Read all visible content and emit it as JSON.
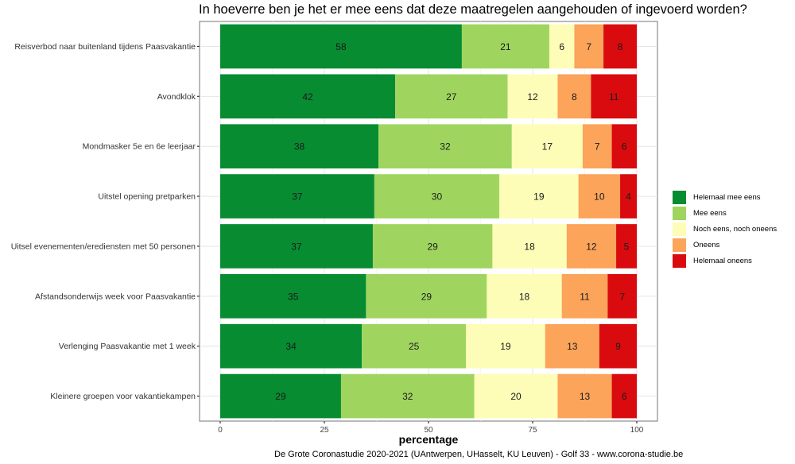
{
  "chart_data": {
    "type": "bar",
    "orientation": "horizontal",
    "stacked": true,
    "title": "In hoeverre ben je het er mee eens dat deze maatregelen aangehouden of ingevoerd worden?",
    "xlabel": "percentage",
    "ylabel": "",
    "xlim": [
      0,
      100
    ],
    "x_ticks": [
      0,
      25,
      50,
      75,
      100
    ],
    "grid": true,
    "legend_position": "right",
    "caption": "De Grote Coronastudie 2020-2021  (UAntwerpen, UHasselt, KU Leuven) - Golf 33 - www.corona-studie.be",
    "categories": [
      "Reisverbod naar buitenland tijdens Paasvakantie",
      "Avondklok",
      "Mondmasker 5e en 6e leerjaar",
      "Uitstel opening pretparken",
      "Uitsel evenementen/erediensten met 50 personen",
      "Afstandsonderwijs week voor Paasvakantie",
      "Verlenging Paasvakantie met 1 week",
      "Kleinere groepen voor vakantiekampen"
    ],
    "series": [
      {
        "name": "Helemaal mee eens",
        "color": "#078c32",
        "values": [
          58,
          42,
          38,
          37,
          37,
          35,
          34,
          29
        ]
      },
      {
        "name": "Mee eens",
        "color": "#9fd55f",
        "values": [
          21,
          27,
          32,
          30,
          29,
          29,
          25,
          32
        ]
      },
      {
        "name": "Noch eens, noch oneens",
        "color": "#fdfdb8",
        "values": [
          6,
          12,
          17,
          19,
          18,
          18,
          19,
          20
        ]
      },
      {
        "name": "Oneens",
        "color": "#fba45a",
        "values": [
          7,
          8,
          7,
          10,
          12,
          11,
          13,
          13
        ]
      },
      {
        "name": "Helemaal oneens",
        "color": "#d90b0e",
        "values": [
          8,
          11,
          6,
          4,
          5,
          7,
          9,
          6
        ]
      }
    ]
  }
}
